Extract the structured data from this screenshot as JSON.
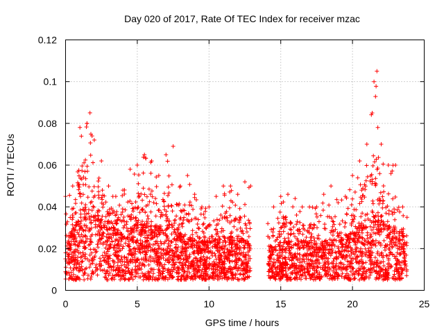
{
  "chart_data": {
    "type": "scatter",
    "title": "Day 020 of 2017, Rate Of TEC Index for receiver mzac",
    "xlabel": "GPS time / hours",
    "ylabel": "ROTI / TECUs",
    "xlim": [
      0,
      25
    ],
    "ylim": [
      0,
      0.12
    ],
    "xticks": [
      "0",
      "5",
      "10",
      "15",
      "20",
      "25"
    ],
    "yticks": [
      "0",
      "0.02",
      "0.04",
      "0.06",
      "0.08",
      "0.1",
      "0.12"
    ],
    "grid": true,
    "marker": "+",
    "color": "#ff0000",
    "data_gap_hours": [
      12.9,
      14.1
    ],
    "series": [
      {
        "name": "ROTI",
        "envelope_x": [
          0,
          0.5,
          1,
          1.5,
          1.7,
          2,
          2.5,
          3,
          3.5,
          4,
          4.5,
          5,
          5.5,
          6,
          6.5,
          7,
          7.5,
          8,
          8.5,
          9,
          9.5,
          10,
          10.5,
          11,
          11.5,
          12,
          12.5,
          12.9,
          14.1,
          14.5,
          15,
          15.5,
          16,
          16.5,
          17,
          17.5,
          18,
          18.5,
          19,
          19.5,
          20,
          20.5,
          21,
          21.5,
          21.7,
          22,
          22.5,
          23,
          23.5,
          23.8
        ],
        "envelope_max": [
          0.045,
          0.05,
          0.078,
          0.08,
          0.085,
          0.072,
          0.062,
          0.05,
          0.045,
          0.048,
          0.058,
          0.06,
          0.065,
          0.062,
          0.055,
          0.065,
          0.069,
          0.05,
          0.055,
          0.046,
          0.04,
          0.04,
          0.045,
          0.05,
          0.05,
          0.046,
          0.052,
          0.05,
          0.032,
          0.04,
          0.045,
          0.046,
          0.044,
          0.04,
          0.04,
          0.04,
          0.046,
          0.05,
          0.042,
          0.045,
          0.055,
          0.062,
          0.07,
          0.1,
          0.105,
          0.07,
          0.06,
          0.06,
          0.04,
          0.035
        ],
        "envelope_typical": [
          0.02,
          0.025,
          0.03,
          0.035,
          0.035,
          0.033,
          0.03,
          0.028,
          0.025,
          0.024,
          0.025,
          0.027,
          0.028,
          0.027,
          0.025,
          0.026,
          0.027,
          0.024,
          0.022,
          0.021,
          0.02,
          0.02,
          0.021,
          0.022,
          0.022,
          0.021,
          0.02,
          0.02,
          0.018,
          0.018,
          0.019,
          0.02,
          0.02,
          0.02,
          0.02,
          0.019,
          0.02,
          0.021,
          0.02,
          0.021,
          0.024,
          0.026,
          0.028,
          0.03,
          0.03,
          0.028,
          0.026,
          0.024,
          0.022,
          0.021
        ],
        "floor": 0.005
      }
    ]
  }
}
